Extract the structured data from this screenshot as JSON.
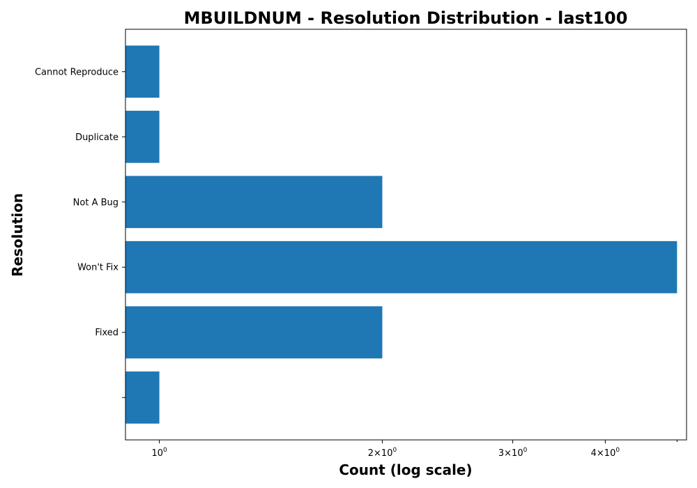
{
  "chart_data": {
    "type": "bar",
    "orientation": "horizontal",
    "title": "MBUILDNUM - Resolution Distribution - last100",
    "xlabel": "Count (log scale)",
    "ylabel": "Resolution",
    "x_scale": "log",
    "xlim": [
      0.9,
      5.15
    ],
    "grid": false,
    "bar_color": "#1f77b4",
    "categories": [
      "Cannot Reproduce",
      "Duplicate",
      "Not A Bug",
      "Won't Fix",
      "Fixed",
      ""
    ],
    "values": [
      1,
      1,
      2,
      5,
      2,
      1
    ],
    "x_ticks": [
      {
        "value": 1,
        "base": "10",
        "exp": "0"
      },
      {
        "value": 2,
        "base": "2×10",
        "exp": "0"
      },
      {
        "value": 3,
        "base": "3×10",
        "exp": "0"
      },
      {
        "value": 4,
        "base": "4×10",
        "exp": "0"
      }
    ],
    "minor_ticks": [
      5
    ]
  }
}
